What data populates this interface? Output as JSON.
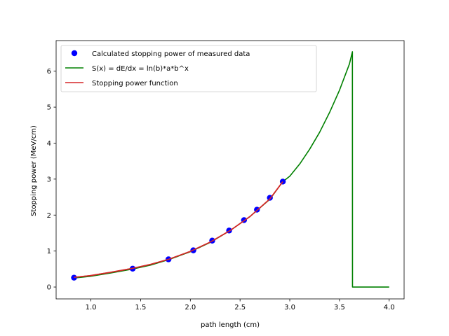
{
  "chart_data": {
    "type": "line",
    "title": "",
    "xlabel": "path length (cm)",
    "ylabel": "Stopping power (MeV/cm)",
    "xlim": [
      0.65,
      4.15
    ],
    "ylim": [
      -0.33,
      6.85
    ],
    "xticks": [
      1.0,
      1.5,
      2.0,
      2.5,
      3.0,
      3.5,
      4.0
    ],
    "xtick_labels": [
      "1.0",
      "1.5",
      "2.0",
      "2.5",
      "3.0",
      "3.5",
      "4.0"
    ],
    "yticks": [
      0,
      1,
      2,
      3,
      4,
      5,
      6
    ],
    "ytick_labels": [
      "0",
      "1",
      "2",
      "3",
      "4",
      "5",
      "6"
    ],
    "grid": false,
    "legend_position": "top-left",
    "series": [
      {
        "name": "Calculated stopping power of measured data",
        "kind": "scatter",
        "color": "#0000ff",
        "x": [
          0.83,
          1.42,
          1.78,
          2.03,
          2.22,
          2.39,
          2.54,
          2.67,
          2.8,
          2.93
        ],
        "y": [
          0.26,
          0.51,
          0.77,
          1.02,
          1.29,
          1.57,
          1.86,
          2.15,
          2.48,
          2.93
        ]
      },
      {
        "name": "S(x) = dE/dx = ln(b)*a*b^x",
        "kind": "line",
        "color": "#008000",
        "x": [
          0.83,
          1.0,
          1.2,
          1.42,
          1.6,
          1.78,
          2.0,
          2.2,
          2.4,
          2.6,
          2.8,
          2.93,
          3.0,
          3.1,
          3.2,
          3.3,
          3.4,
          3.5,
          3.6,
          3.63,
          3.631,
          3.8,
          4.0
        ],
        "y": [
          0.25,
          0.3,
          0.39,
          0.5,
          0.61,
          0.76,
          0.98,
          1.24,
          1.57,
          1.96,
          2.44,
          2.93,
          3.08,
          3.42,
          3.83,
          4.3,
          4.85,
          5.47,
          6.2,
          6.54,
          0.0,
          0.0,
          0.0
        ]
      },
      {
        "name": "Stopping power function",
        "kind": "line",
        "color": "#d62728",
        "x": [
          0.83,
          1.0,
          1.2,
          1.42,
          1.6,
          1.78,
          2.0,
          2.2,
          2.4,
          2.6,
          2.8,
          2.93
        ],
        "y": [
          0.27,
          0.32,
          0.41,
          0.52,
          0.63,
          0.77,
          0.99,
          1.25,
          1.57,
          1.96,
          2.45,
          2.93
        ]
      }
    ]
  }
}
